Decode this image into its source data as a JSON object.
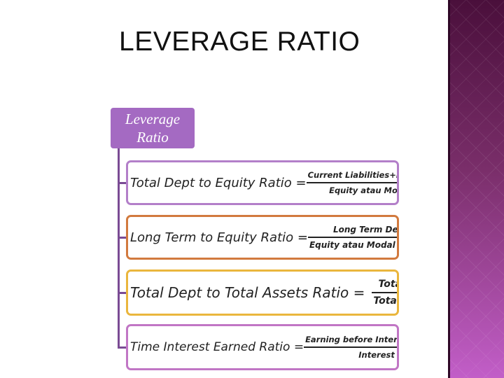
{
  "slide": {
    "title": "LEVERAGE RATIO"
  },
  "diagram": {
    "root": {
      "line1": "Leverage",
      "line2": "Ratio"
    },
    "formulas": [
      {
        "name": "Total Dept to Equity Ratio =",
        "numerator": "Current Liabilities+Long Term Dept",
        "denominator": "Equity atau Modal Sendiri",
        "border_color": "#b37fc9"
      },
      {
        "name": "Long Term to Equity Ratio =",
        "numerator": "Long Term Dept",
        "denominator": "Equity atau Modal Sendiri",
        "border_color": "#d27a3e"
      },
      {
        "name": "Total Dept to Total Assets Ratio =",
        "numerator": "Total Dept",
        "denominator": "Total Assets",
        "border_color": "#eab63d"
      },
      {
        "name": "Time Interest Earned Ratio =",
        "numerator": "Earning before Interest dan Income Tax",
        "denominator": "Interest Change",
        "border_color": "#c176c5"
      }
    ]
  },
  "theme": {
    "accent": "#a46ac2",
    "side_band_dark": "#4a0f3b",
    "side_band_light": "#c25ec8"
  }
}
